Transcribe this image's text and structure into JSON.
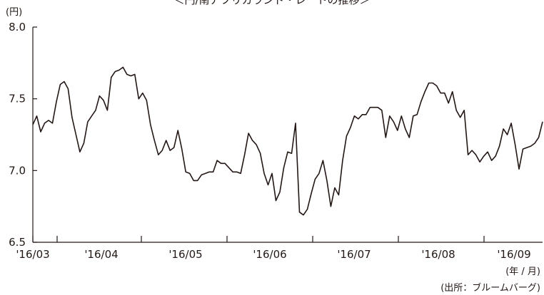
{
  "chart_data": {
    "type": "line",
    "title": "＜円/南アフリカランド・レートの推移＞",
    "yunit": "(円)",
    "xunit": "(年 / 月)",
    "source": "(出所：ブルームバーグ)",
    "ylim": [
      6.5,
      8.0
    ],
    "yticks": [
      "8.0",
      "7.5",
      "7.0",
      "6.5"
    ],
    "ytick_values": [
      8.0,
      7.5,
      7.0,
      6.5
    ],
    "xticks": [
      "'16/03",
      "'16/04",
      "'16/05",
      "'16/06",
      "'16/07",
      "'16/08",
      "'16/09"
    ],
    "grid": false,
    "line_color": "#231815",
    "series": [
      {
        "values": [
          7.32,
          7.38,
          7.27,
          7.33,
          7.35,
          7.33,
          7.48,
          7.6,
          7.62,
          7.57,
          7.37,
          7.25,
          7.13,
          7.19,
          7.34,
          7.38,
          7.42,
          7.52,
          7.49,
          7.42,
          7.65,
          7.69,
          7.7,
          7.72,
          7.67,
          7.66,
          7.67,
          7.5,
          7.54,
          7.49,
          7.32,
          7.21,
          7.11,
          7.14,
          7.21,
          7.14,
          7.16,
          7.28,
          7.15,
          6.99,
          6.98,
          6.93,
          6.93,
          6.97,
          6.98,
          6.99,
          6.99,
          7.07,
          7.05,
          7.05,
          7.02,
          6.99,
          6.99,
          6.98,
          7.11,
          7.26,
          7.21,
          7.18,
          7.12,
          6.98,
          6.9,
          6.98,
          6.79,
          6.85,
          7.02,
          7.13,
          7.12,
          7.33,
          6.71,
          6.69,
          6.73,
          6.84,
          6.94,
          6.98,
          7.07,
          6.93,
          6.75,
          6.88,
          6.83,
          7.07,
          7.24,
          7.3,
          7.38,
          7.36,
          7.39,
          7.39,
          7.44,
          7.44,
          7.44,
          7.42,
          7.23,
          7.38,
          7.34,
          7.28,
          7.38,
          7.29,
          7.23,
          7.38,
          7.39,
          7.48,
          7.55,
          7.61,
          7.61,
          7.59,
          7.54,
          7.54,
          7.47,
          7.55,
          7.42,
          7.37,
          7.42,
          7.11,
          7.14,
          7.11,
          7.06,
          7.1,
          7.13,
          7.07,
          7.1,
          7.17,
          7.29,
          7.25,
          7.33,
          7.18,
          7.01,
          7.15,
          7.16,
          7.17,
          7.19,
          7.23,
          7.34
        ]
      }
    ]
  }
}
